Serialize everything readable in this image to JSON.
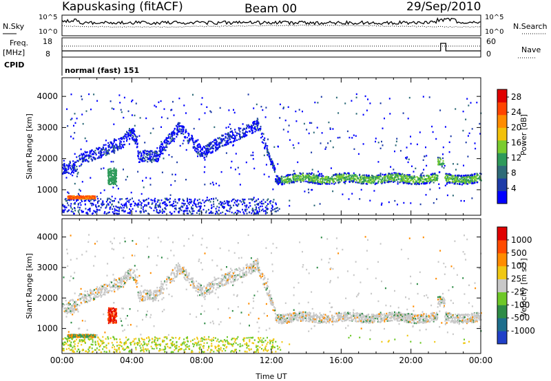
{
  "header": {
    "station": "Kapuskasing (fitACF)",
    "beam": "Beam 00",
    "date": "29/Sep/2010"
  },
  "panels_top": {
    "nsky_label": "N.Sky",
    "nsearch_label": "N.Search",
    "nsky_ticks": [
      "10^5",
      "10^0"
    ],
    "freq_label": "Freq.",
    "freq_unit": "[MHz]",
    "freq_ticks": [
      "18",
      "8"
    ],
    "nave_label": "Nave",
    "nave_ticks": [
      "60",
      "0"
    ],
    "cpid_label": "CPID",
    "cpid_value": "normal (fast) 151"
  },
  "chart_data": [
    {
      "type": "heatmap",
      "title": "",
      "xlabel": "Time UT",
      "ylabel": "Slant Range [km]",
      "x_ticks": [
        "00:00",
        "04:00",
        "08:00",
        "12:00",
        "16:00",
        "20:00",
        "00:00"
      ],
      "y_ticks": [
        1000,
        2000,
        3000,
        4000
      ],
      "xlim_hours": [
        0,
        24
      ],
      "ylim_km": [
        180,
        4600
      ],
      "colorbar": {
        "label": "Power [dB]",
        "ticks": [
          4,
          8,
          12,
          16,
          20,
          24,
          28
        ],
        "range": [
          0,
          30
        ],
        "colors": [
          "#0000ff",
          "#1e3ca8",
          "#2e6b78",
          "#2e9a5a",
          "#7acc2e",
          "#f2c10a",
          "#ff8c00",
          "#ff4400",
          "#e00000"
        ]
      }
    },
    {
      "type": "heatmap",
      "title": "",
      "xlabel": "Time UT",
      "ylabel": "Slant Range [km]",
      "x_ticks": [
        "00:00",
        "04:00",
        "08:00",
        "12:00",
        "16:00",
        "20:00",
        "00:00"
      ],
      "y_ticks": [
        1000,
        2000,
        3000,
        4000
      ],
      "xlim_hours": [
        0,
        24
      ],
      "ylim_km": [
        180,
        4600
      ],
      "colorbar": {
        "label": "Velocity [m s",
        "label_sup": "-1",
        "label_end": "]",
        "ticks": [
          "1000",
          "500",
          "100",
          "25",
          "-25",
          "-100",
          "-500",
          "-1000"
        ],
        "colors": [
          "#2040c8",
          "#1e6e8c",
          "#2e8c46",
          "#6ec828",
          "#c8c8c8",
          "#f0c814",
          "#ff8c00",
          "#ff4b00",
          "#e00000"
        ]
      }
    }
  ]
}
